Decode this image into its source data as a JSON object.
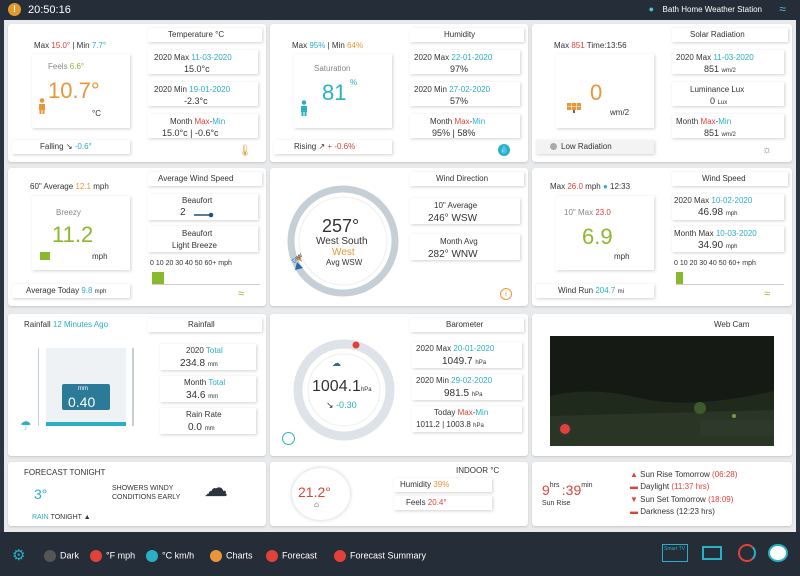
{
  "topbar": {
    "alert_icon": "!",
    "time": "20:50:16",
    "station": "Bath Home Weather Station"
  },
  "temperature": {
    "title": "Temperature °C",
    "max_label": "Max",
    "max_value": "15.0°",
    "min_sep": "| Min",
    "min_value": "7.7°",
    "feels_label": "Feels",
    "feels_value": "6.6°",
    "current": "10.7°",
    "unit": "°C",
    "trend": "Falling",
    "trend_value": "-0.6°",
    "year_max_label": "2020 Max",
    "year_max_date": "11-03-2020",
    "year_max_value": "15.0°c",
    "year_min_label": "2020 Min",
    "year_min_date": "19-01-2020",
    "year_min_value": "-2.3°c",
    "month_label": "Month",
    "month_max": "Max",
    "month_dash": "-",
    "month_min": "Min",
    "month_values": "15.0°c | -0.6°c"
  },
  "humidity": {
    "title": "Humidity",
    "max_label": "Max",
    "max_value": "95%",
    "min_sep": "| Min",
    "min_value": "64%",
    "saturation_label": "Saturation",
    "current": "81",
    "unit": "%",
    "trend": "Rising",
    "trend_value": "+ -0.6%",
    "year_max_label": "2020 Max",
    "year_max_date": "22-01-2020",
    "year_max_value": "97%",
    "year_min_label": "2020 Min",
    "year_min_date": "27-02-2020",
    "year_min_value": "57%",
    "month_label": "Month",
    "month_max": "Max",
    "month_dash": "-",
    "month_min": "Min",
    "month_values": "95% | 58%"
  },
  "solar": {
    "title": "Solar Radiation",
    "max_label": "Max",
    "max_value": "851",
    "time_label": "Time:13:56",
    "current": "0",
    "unit": "wm/2",
    "status": "Low Radiation",
    "year_max_label": "2020 Max",
    "year_max_date": "11-03-2020",
    "year_max_value": "851",
    "wm2": "wm/2",
    "lux_label": "Luminance Lux",
    "lux_value": "0",
    "lux_unit": "Lux",
    "month_label": "Month",
    "month_max": "Max",
    "month_dash": "-",
    "month_min": "Min",
    "month_value": "851"
  },
  "avg_wind": {
    "title": "Average Wind Speed",
    "avg_label": "60\" Average",
    "avg_value": "12.1",
    "avg_unit": "mph",
    "desc": "Breezy",
    "current": "11.2",
    "unit": "mph",
    "beaufort_label": "Beaufort",
    "beaufort_value": "2",
    "beaufort_desc_label": "Beaufort",
    "beaufort_desc": "Light Breeze",
    "scale": "0 10  20 30 40 50 60+ mph",
    "today_label": "Average Today",
    "today_value": "9.8",
    "today_unit": "mph"
  },
  "wind_dir": {
    "title": "Wind Direction",
    "degrees": "257°",
    "compass": "West South",
    "cardinal": "West",
    "avg": "Avg WSW",
    "avg10_label": "10\" Average",
    "avg10_value": "246°  WSW",
    "month_avg_label": "Month Avg",
    "month_avg_value": "282°  WNW",
    "dial_label": "DIW"
  },
  "wind_speed": {
    "title": "Wind Speed",
    "max_label": "Max",
    "max_value": "26.0",
    "max_unit": "mph",
    "max_time": "12:33",
    "max10_label": "10\" Max",
    "max10_value": "23.0",
    "current": "6.9",
    "unit": "mph",
    "year_max_label": "2020 Max",
    "year_max_date": "10-02-2020",
    "year_max_value": "46.98",
    "year_max_unit": "mph",
    "month_max_label": "Month Max",
    "month_max_date": "10-03-2020",
    "month_max_value": "34.90",
    "month_max_unit": "mph",
    "scale": "0 10  20 30 40 50 60+ mph",
    "run_label": "Wind Run",
    "run_value": "204.7",
    "run_unit": "mi"
  },
  "rainfall": {
    "left_title_a": "Rainfall",
    "left_title_b": "12 Minutes Ago",
    "title": "Rainfall",
    "gauge_unit": "mm",
    "gauge_value": "0.40",
    "year_label": "2020",
    "year_total": "Total",
    "year_value": "234.8",
    "mm": "mm",
    "month_label": "Month",
    "month_total": "Total",
    "month_value": "34.6",
    "rate_label": "Rain Rate",
    "rate_value": "0.0"
  },
  "barometer": {
    "title": "Barometer",
    "value": "1004.1",
    "unit": "hPa",
    "trend": "-0.30",
    "year_max_label": "2020 Max",
    "year_max_date": "20-01-2020",
    "year_max_value": "1049.7",
    "year_min_label": "2020 Min",
    "year_min_date": "29-02-2020",
    "year_min_value": "981.5",
    "today_label": "Today",
    "today_max": "Max",
    "today_dash": "-",
    "today_min": "Min",
    "today_values": "1011.2 | 1003.8",
    "hpa": "hPa"
  },
  "webcam": {
    "title": "Web Cam"
  },
  "forecast": {
    "title": "FORECAST TONIGHT",
    "temp": "3°",
    "text": "SHOWERS WINDY CONDITIONS EARLY",
    "rain_label": "RAIN",
    "tonight": "TONIGHT"
  },
  "indoor": {
    "title": "INDOOR °C",
    "temp": "21.2°",
    "humidity_label": "Humidity",
    "humidity_value": "39%",
    "feels_label": "Feels",
    "feels_value": "20.4°"
  },
  "sun": {
    "hrs_value": "9",
    "hrs_label": "hrs",
    "min_value": ":39",
    "min_label": "min",
    "sunrise_label": "Sun Rise",
    "rise_label": "Sun Rise Tomorrow",
    "rise_time": "(06:28)",
    "daylight_label": "Daylight",
    "daylight_value": "(11:37 hrs)",
    "set_label": "Sun Set Tomorrow",
    "set_time": "(18:09)",
    "dark_label": "Darkness",
    "dark_value": "(12:23 hrs)"
  },
  "bottombar": {
    "dark": "Dark",
    "fmph": "°F mph",
    "ckmh": "°C km/h",
    "charts": "Charts",
    "forecast": "Forecast",
    "forecast_summary": "Forecast Summary",
    "tv": "Smart TV"
  },
  "colors": {
    "teal": "#2ab0c5",
    "orange": "#e8963a",
    "red": "#e0423a",
    "green": "#8ab82e",
    "bar": "#252d38"
  }
}
